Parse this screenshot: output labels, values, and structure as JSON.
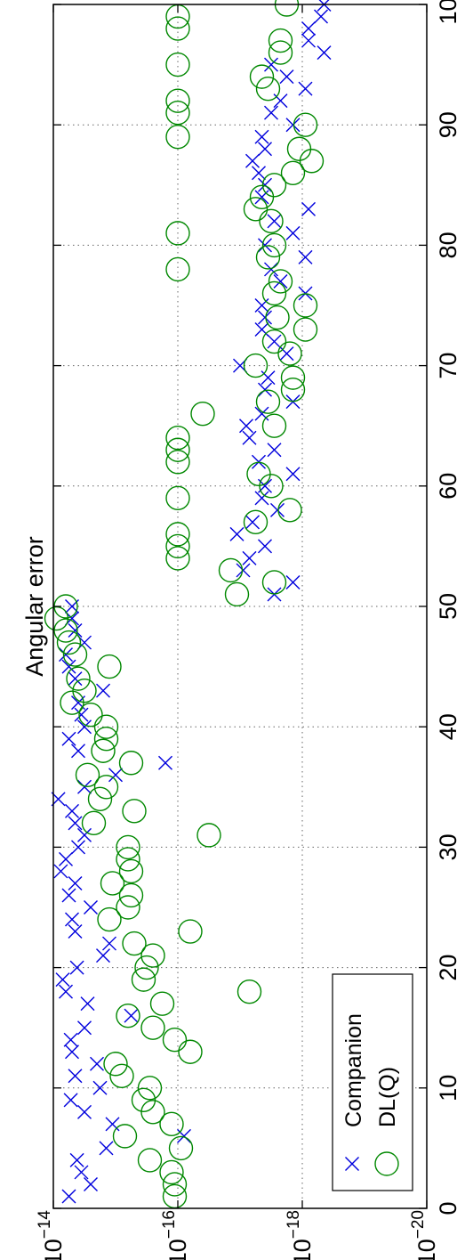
{
  "chart_data": {
    "type": "scatter",
    "title": "Angular error",
    "xlabel": "",
    "ylabel": "",
    "xlim": [
      0,
      100
    ],
    "ylim_log10": [
      -20,
      -14
    ],
    "x_ticks": [
      "0",
      "10",
      "20",
      "30",
      "40",
      "50",
      "60",
      "70",
      "80",
      "90",
      "100"
    ],
    "y_ticks": [
      {
        "base": "10",
        "exp": "−14",
        "value": -14
      },
      {
        "base": "10",
        "exp": "−16",
        "value": -16
      },
      {
        "base": "10",
        "exp": "−18",
        "value": -18
      },
      {
        "base": "10",
        "exp": "−20",
        "value": -20
      }
    ],
    "grid": true,
    "orientation": "rotated-90-ccw",
    "legend": {
      "placement": "bottom-left",
      "entries": [
        "Companion",
        "DL(Q)"
      ]
    },
    "series": [
      {
        "name": "Companion",
        "marker": "x",
        "color": "#0000dd",
        "points": [
          [
            1,
            -14.25
          ],
          [
            2,
            -14.6
          ],
          [
            3,
            -14.45
          ],
          [
            4,
            -14.38
          ],
          [
            5,
            -14.85
          ],
          [
            6,
            -16.1
          ],
          [
            7,
            -14.95
          ],
          [
            8,
            -14.5
          ],
          [
            9,
            -14.28
          ],
          [
            10,
            -14.75
          ],
          [
            11,
            -14.35
          ],
          [
            12,
            -14.7
          ],
          [
            13,
            -14.3
          ],
          [
            14,
            -14.28
          ],
          [
            15,
            -14.5
          ],
          [
            16,
            -15.25
          ],
          [
            17,
            -14.55
          ],
          [
            18,
            -14.2
          ],
          [
            19,
            -14.15
          ],
          [
            20,
            -14.38
          ],
          [
            21,
            -14.8
          ],
          [
            22,
            -14.9
          ],
          [
            23,
            -14.35
          ],
          [
            24,
            -14.3
          ],
          [
            25,
            -14.6
          ],
          [
            26,
            -14.25
          ],
          [
            27,
            -14.35
          ],
          [
            28,
            -14.12
          ],
          [
            29,
            -14.2
          ],
          [
            30,
            -14.4
          ],
          [
            31,
            -14.5
          ],
          [
            32,
            -14.35
          ],
          [
            33,
            -14.3
          ],
          [
            34,
            -14.08
          ],
          [
            35,
            -14.5
          ],
          [
            36,
            -15.0
          ],
          [
            37,
            -15.8
          ],
          [
            38,
            -14.4
          ],
          [
            39,
            -14.25
          ],
          [
            40,
            -14.5
          ],
          [
            41,
            -14.45
          ],
          [
            42,
            -14.4
          ],
          [
            43,
            -14.8
          ],
          [
            44,
            -14.35
          ],
          [
            45,
            -14.25
          ],
          [
            46,
            -14.2
          ],
          [
            47,
            -14.5
          ],
          [
            48,
            -14.35
          ],
          [
            49,
            -14.3
          ],
          [
            50,
            -14.3
          ],
          [
            51,
            -17.55
          ],
          [
            52,
            -17.85
          ],
          [
            53,
            -17.05
          ],
          [
            54,
            -17.15
          ],
          [
            55,
            -17.4
          ],
          [
            56,
            -16.95
          ],
          [
            57,
            -17.2
          ],
          [
            58,
            -17.6
          ],
          [
            59,
            -17.35
          ],
          [
            60,
            -17.4
          ],
          [
            61,
            -17.85
          ],
          [
            62,
            -17.3
          ],
          [
            63,
            -17.55
          ],
          [
            64,
            -17.15
          ],
          [
            65,
            -17.1
          ],
          [
            66,
            -17.35
          ],
          [
            67,
            -17.85
          ],
          [
            68,
            -17.4
          ],
          [
            69,
            -17.45
          ],
          [
            70,
            -17.0
          ],
          [
            71,
            -17.75
          ],
          [
            72,
            -17.55
          ],
          [
            73,
            -17.35
          ],
          [
            74,
            -17.4
          ],
          [
            75,
            -17.35
          ],
          [
            76,
            -18.05
          ],
          [
            77,
            -17.65
          ],
          [
            78,
            -17.5
          ],
          [
            79,
            -18.05
          ],
          [
            80,
            -17.4
          ],
          [
            81,
            -17.85
          ],
          [
            82,
            -17.55
          ],
          [
            83,
            -18.1
          ],
          [
            84,
            -17.35
          ],
          [
            85,
            -17.4
          ],
          [
            86,
            -17.3
          ],
          [
            87,
            -17.2
          ],
          [
            88,
            -17.4
          ],
          [
            89,
            -17.35
          ],
          [
            90,
            -17.85
          ],
          [
            91,
            -17.5
          ],
          [
            92,
            -17.65
          ],
          [
            93,
            -18.05
          ],
          [
            94,
            -17.75
          ],
          [
            95,
            -17.5
          ],
          [
            96,
            -18.35
          ],
          [
            97,
            -18.1
          ],
          [
            98,
            -18.1
          ],
          [
            99,
            -18.3
          ],
          [
            100,
            -18.35
          ]
        ]
      },
      {
        "name": "DL(Q)",
        "marker": "o",
        "color": "#008800",
        "points": [
          [
            1,
            -15.95
          ],
          [
            2,
            -15.95
          ],
          [
            3,
            -15.9
          ],
          [
            4,
            -15.55
          ],
          [
            5,
            -16.05
          ],
          [
            6,
            -15.15
          ],
          [
            7,
            -15.9
          ],
          [
            8,
            -15.6
          ],
          [
            9,
            -15.45
          ],
          [
            10,
            -15.55
          ],
          [
            11,
            -15.1
          ],
          [
            12,
            -15.0
          ],
          [
            13,
            -16.2
          ],
          [
            14,
            -15.95
          ],
          [
            15,
            -15.6
          ],
          [
            16,
            -15.2
          ],
          [
            17,
            -15.75
          ],
          [
            18,
            -17.15
          ],
          [
            19,
            -15.45
          ],
          [
            20,
            -15.5
          ],
          [
            21,
            -15.6
          ],
          [
            22,
            -15.3
          ],
          [
            23,
            -16.2
          ],
          [
            24,
            -14.9
          ],
          [
            25,
            -15.2
          ],
          [
            26,
            -15.25
          ],
          [
            27,
            -14.95
          ],
          [
            28,
            -15.25
          ],
          [
            29,
            -15.2
          ],
          [
            30,
            -15.2
          ],
          [
            31,
            -16.5
          ],
          [
            32,
            -14.65
          ],
          [
            33,
            -15.3
          ],
          [
            34,
            -14.75
          ],
          [
            35,
            -14.85
          ],
          [
            36,
            -14.55
          ],
          [
            37,
            -15.25
          ],
          [
            38,
            -14.8
          ],
          [
            39,
            -14.85
          ],
          [
            40,
            -14.85
          ],
          [
            41,
            -14.6
          ],
          [
            42,
            -14.3
          ],
          [
            43,
            -14.5
          ],
          [
            44,
            -14.4
          ],
          [
            45,
            -14.9
          ],
          [
            46,
            -14.35
          ],
          [
            47,
            -14.25
          ],
          [
            48,
            -14.2
          ],
          [
            49,
            -14.05
          ],
          [
            50,
            -14.2
          ],
          [
            51,
            -16.95
          ],
          [
            52,
            -17.55
          ],
          [
            53,
            -16.85
          ],
          [
            54,
            -16.0
          ],
          [
            55,
            -16.0
          ],
          [
            56,
            -16.0
          ],
          [
            57,
            -17.25
          ],
          [
            58,
            -17.8
          ],
          [
            59,
            -16.0
          ],
          [
            60,
            -17.5
          ],
          [
            61,
            -17.3
          ],
          [
            62,
            -16.0
          ],
          [
            63,
            -16.0
          ],
          [
            64,
            -16.0
          ],
          [
            65,
            -17.55
          ],
          [
            66,
            -16.4
          ],
          [
            67,
            -17.45
          ],
          [
            68,
            -17.85
          ],
          [
            69,
            -17.85
          ],
          [
            70,
            -17.25
          ],
          [
            71,
            -17.8
          ],
          [
            72,
            -17.55
          ],
          [
            73,
            -18.05
          ],
          [
            74,
            -17.6
          ],
          [
            75,
            -18.05
          ],
          [
            76,
            -17.55
          ],
          [
            77,
            -17.65
          ],
          [
            78,
            -16.0
          ],
          [
            79,
            -17.45
          ],
          [
            80,
            -17.55
          ],
          [
            81,
            -16.0
          ],
          [
            82,
            -17.5
          ],
          [
            83,
            -17.25
          ],
          [
            84,
            -17.35
          ],
          [
            85,
            -17.55
          ],
          [
            86,
            -17.85
          ],
          [
            87,
            -18.15
          ],
          [
            88,
            -17.95
          ],
          [
            89,
            -16.0
          ],
          [
            90,
            -18.05
          ],
          [
            91,
            -16.0
          ],
          [
            92,
            -16.0
          ],
          [
            93,
            -17.45
          ],
          [
            94,
            -17.35
          ],
          [
            95,
            -16.0
          ],
          [
            96,
            -17.65
          ],
          [
            97,
            -17.65
          ],
          [
            98,
            -16.0
          ],
          [
            99,
            -16.0
          ],
          [
            100,
            -17.75
          ]
        ]
      }
    ]
  }
}
